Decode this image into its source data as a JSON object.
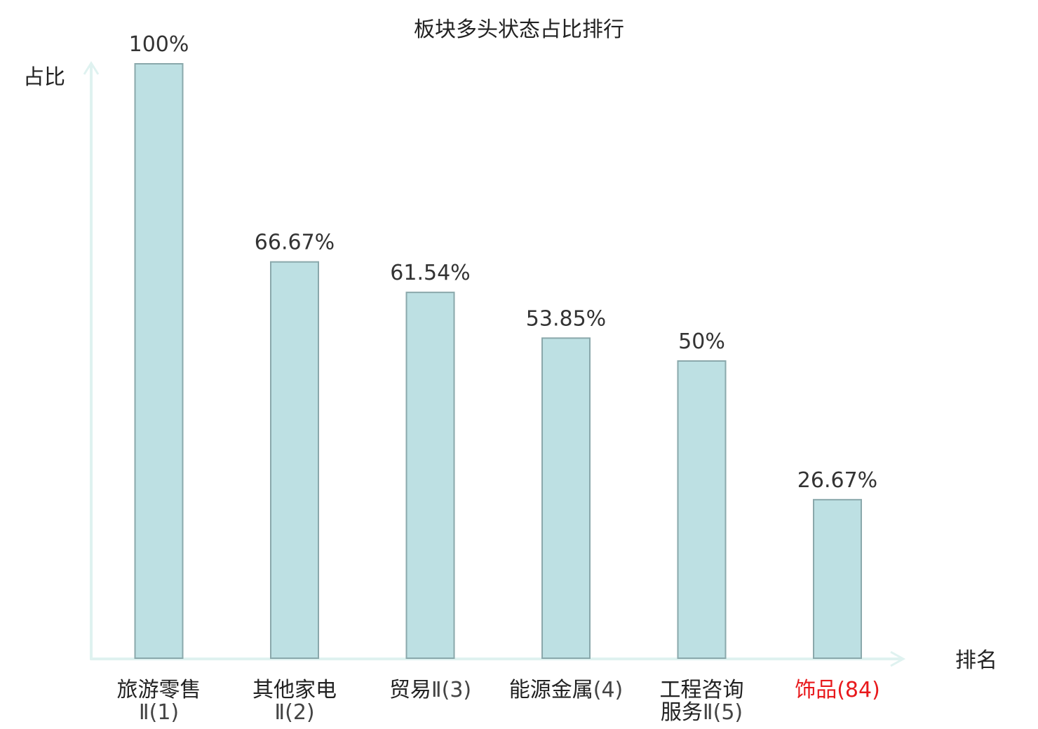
{
  "chart_data": {
    "type": "bar",
    "title": "板块多头状态占比排行",
    "ylabel": "占比",
    "xlabel": "排名",
    "ylim": [
      0,
      100
    ],
    "grid": false,
    "categories": [
      {
        "name_lines": [
          "旅游零售"
        ],
        "rank_line": "Ⅱ(1)",
        "highlight": false
      },
      {
        "name_lines": [
          "其他家电"
        ],
        "rank_line": "Ⅱ(2)",
        "highlight": false
      },
      {
        "name_lines": [
          "贸易"
        ],
        "rank_line": "Ⅱ(3)",
        "highlight": false
      },
      {
        "name_lines": [
          "能源金属"
        ],
        "rank_line": "(4)",
        "highlight": false
      },
      {
        "name_lines": [
          "工程咨询",
          "服务"
        ],
        "rank_line": "Ⅱ(5)",
        "highlight": false
      },
      {
        "name_lines": [
          "饰品"
        ],
        "rank_line": "(84)",
        "highlight": true
      }
    ],
    "values": [
      100,
      66.67,
      61.54,
      53.85,
      50,
      26.67
    ],
    "value_labels": [
      "100%",
      "66.67%",
      "61.54%",
      "53.85%",
      "50%",
      "26.67%"
    ],
    "colors": {
      "bar_fill": "#bde0e3",
      "bar_stroke": "#8aa8ab",
      "axis": "#dff2f0",
      "highlight_text": "#e8191c"
    }
  }
}
